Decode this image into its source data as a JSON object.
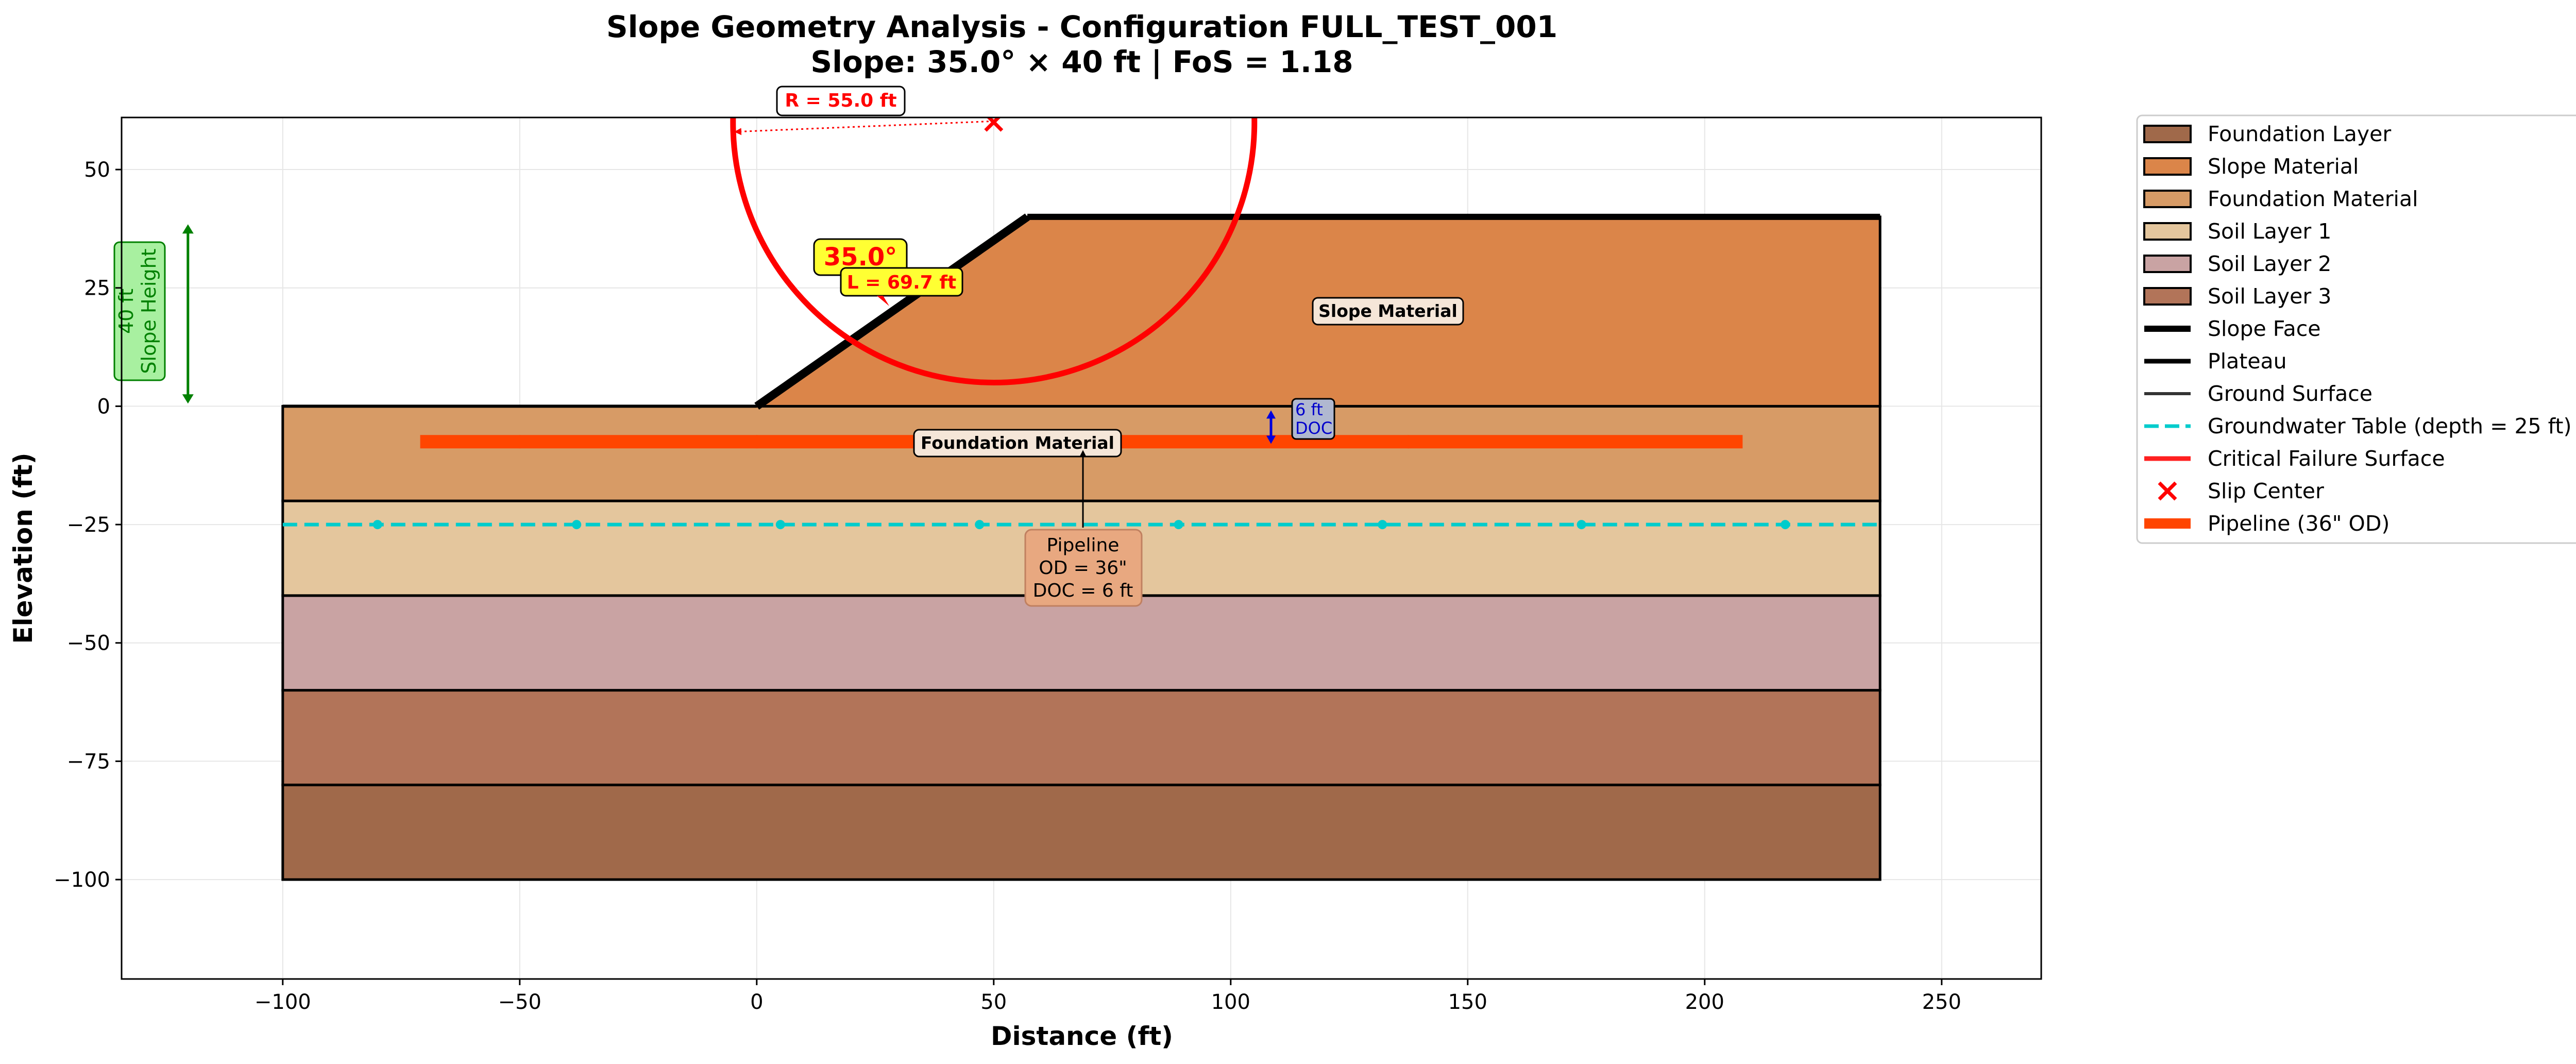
{
  "chart_data": {
    "type": "area",
    "title": "Slope Geometry Analysis - Configuration FULL_TEST_001",
    "subtitle": "Slope: 35.0° × 40 ft | FoS = 1.18",
    "xlabel": "Distance (ft)",
    "ylabel": "Elevation (ft)",
    "xlim": [
      -134,
      271
    ],
    "ylim": [
      -121,
      61
    ],
    "xticks": [
      -100,
      -50,
      0,
      50,
      100,
      150,
      200,
      250
    ],
    "yticks": [
      -100,
      -75,
      -50,
      -25,
      0,
      25,
      50
    ],
    "xtick_labels": [
      "−100",
      "−50",
      "0",
      "50",
      "100",
      "150",
      "200",
      "250"
    ],
    "ytick_labels": [
      "−100",
      "−75",
      "−50",
      "−25",
      "0",
      "25",
      "50"
    ],
    "grid": true,
    "legend_position": "outside-right",
    "layers": [
      {
        "name": "Foundation Layer",
        "top": -80,
        "bottom": -100,
        "x0": -100,
        "x1": 237,
        "color": "#a0694a"
      },
      {
        "name": "Soil Layer 3",
        "top": -60,
        "bottom": -80,
        "x0": -100,
        "x1": 237,
        "color": "#b27459"
      },
      {
        "name": "Soil Layer 2",
        "top": -40,
        "bottom": -60,
        "x0": -100,
        "x1": 237,
        "color": "#c9a3a3"
      },
      {
        "name": "Soil Layer 1",
        "top": -20,
        "bottom": -40,
        "x0": -100,
        "x1": 237,
        "color": "#e4c69d"
      },
      {
        "name": "Foundation Material",
        "top": 0,
        "bottom": -20,
        "x0": -100,
        "x1": 237,
        "color": "#d79b66"
      }
    ],
    "slope_material": {
      "name": "Slope Material",
      "polygon": [
        [
          0,
          0
        ],
        [
          57.1,
          40
        ],
        [
          237,
          40
        ],
        [
          237,
          0
        ]
      ],
      "color": "#db8549"
    },
    "slope_face": {
      "name": "Slope Face",
      "x": [
        0,
        57.1
      ],
      "y": [
        0,
        40
      ]
    },
    "plateau": {
      "name": "Plateau",
      "x": [
        57.1,
        237
      ],
      "y": [
        40,
        40
      ]
    },
    "ground_surface": {
      "name": "Ground Surface",
      "x": [
        -100,
        0
      ],
      "y": [
        0,
        0
      ]
    },
    "groundwater": {
      "name": "Groundwater Table (depth = 25 ft)",
      "y": -25,
      "x0": -100,
      "x1": 237,
      "marker_x": [
        -80,
        -38,
        5,
        47,
        89,
        132,
        174,
        217
      ],
      "color": "#00cccc"
    },
    "failure_surface": {
      "name": "Critical Failure Surface",
      "center": [
        50,
        60
      ],
      "radius": 55.0,
      "color": "#ff0000"
    },
    "slip_center": {
      "name": "Slip Center",
      "x": 50,
      "y": 60
    },
    "pipeline": {
      "name": "Pipeline (36\" OD)",
      "x0": -71,
      "x1": 208,
      "y": -7.5,
      "marker_x": [
        -50,
        0,
        137.5
      ],
      "color": "#ff4500"
    },
    "annotations": {
      "radius": "R = 55.0 ft",
      "angle": "35.0°",
      "length": "L = 69.7 ft",
      "slope_height_value": "40 ft",
      "slope_height_label": "Slope Height",
      "slope_material_label": "Slope Material",
      "foundation_material_label": "Foundation Material",
      "pipeline_line1": "Pipeline",
      "pipeline_line2": "OD = 36\"",
      "pipeline_line3": "DOC = 6 ft",
      "doc_value": "6 ft",
      "doc_label": "DOC"
    },
    "legend": [
      {
        "label": "Foundation Layer",
        "kind": "patch",
        "color": "#a0694a"
      },
      {
        "label": "Slope Material",
        "kind": "patch",
        "color": "#db8549"
      },
      {
        "label": "Foundation Material",
        "kind": "patch",
        "color": "#d79b66"
      },
      {
        "label": "Soil Layer 1",
        "kind": "patch",
        "color": "#e4c69d"
      },
      {
        "label": "Soil Layer 2",
        "kind": "patch",
        "color": "#c9a3a3"
      },
      {
        "label": "Soil Layer 3",
        "kind": "patch",
        "color": "#b27459"
      },
      {
        "label": "Slope Face",
        "kind": "line-thick",
        "color": "#000000"
      },
      {
        "label": "Plateau",
        "kind": "line",
        "color": "#000000"
      },
      {
        "label": "Ground Surface",
        "kind": "line-thin",
        "color": "#333333"
      },
      {
        "label": "Groundwater Table (depth = 25 ft)",
        "kind": "dashed",
        "color": "#00cccc"
      },
      {
        "label": "Critical Failure Surface",
        "kind": "line",
        "color": "#ff2020"
      },
      {
        "label": "Slip Center",
        "kind": "cross",
        "color": "#ff0000"
      },
      {
        "label": "Pipeline (36\" OD)",
        "kind": "line-heavy",
        "color": "#ff4500"
      }
    ]
  }
}
